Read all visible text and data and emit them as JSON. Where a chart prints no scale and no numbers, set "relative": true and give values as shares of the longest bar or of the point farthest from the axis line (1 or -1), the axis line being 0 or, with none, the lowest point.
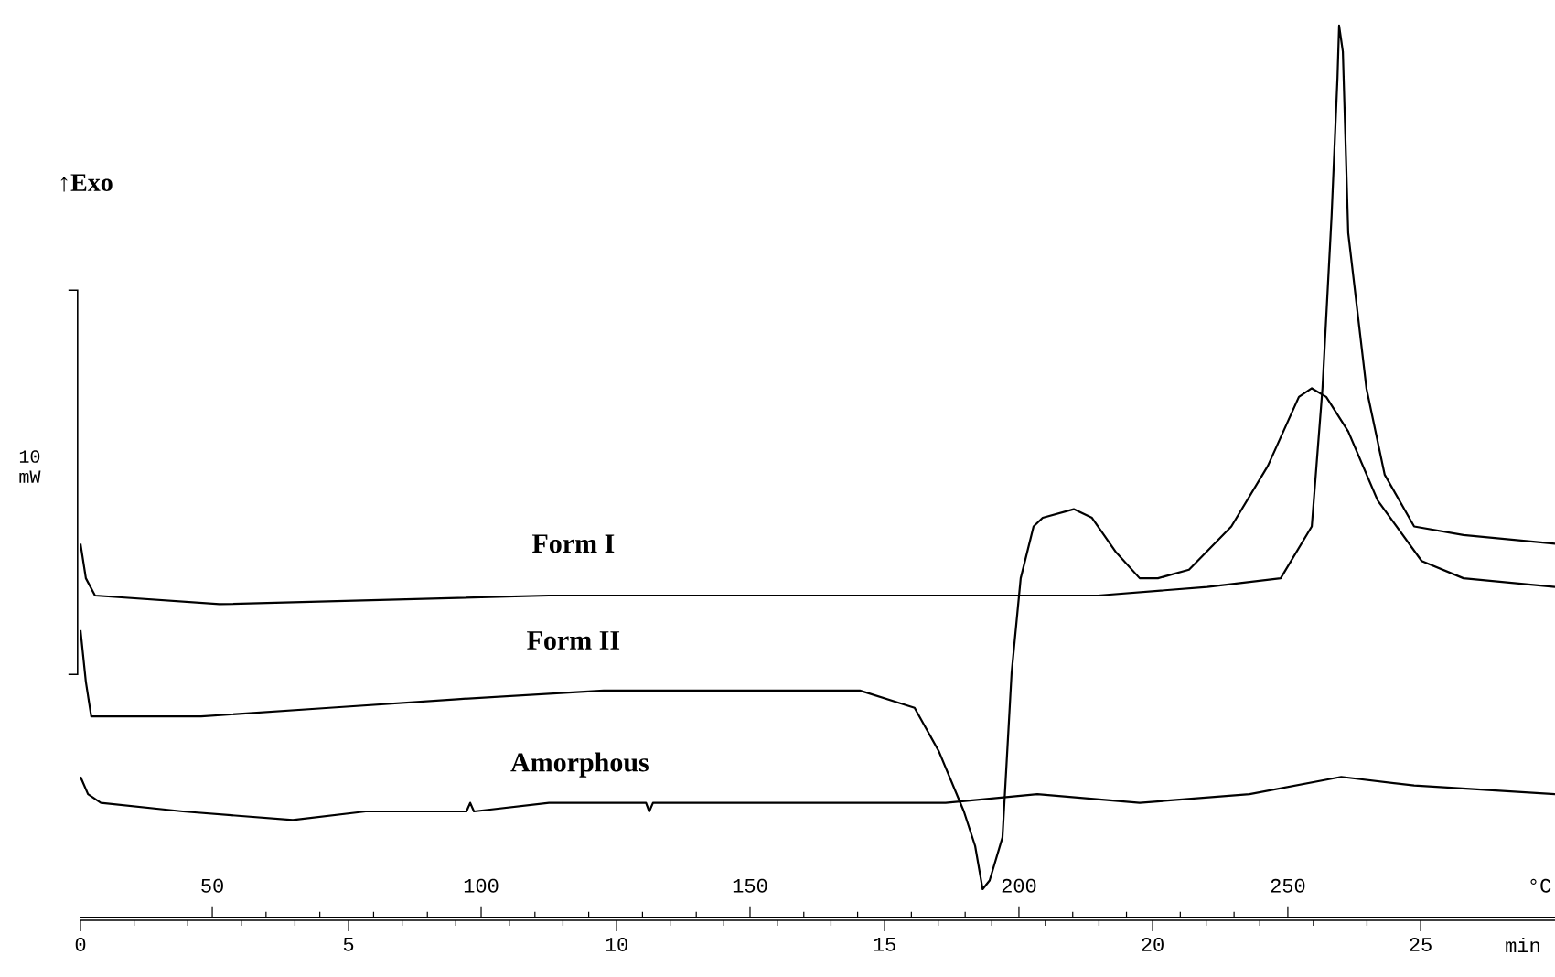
{
  "chart_data": {
    "type": "line",
    "relative": true,
    "xlabel": "min",
    "x2label": "°C",
    "xlim": [
      0,
      27.6
    ],
    "xticks": [
      0,
      5,
      10,
      15,
      20,
      25
    ],
    "x2lim": [
      25.5,
      300.6
    ],
    "x2ticks": [
      50,
      100,
      150,
      200,
      250
    ],
    "annotations": [
      "↑Exo",
      "10 mW"
    ],
    "series": [
      {
        "name": "Form I",
        "color": "#000000",
        "x": [
          0,
          0.1,
          0.27,
          2.59,
          8.74,
          15.56,
          18.98,
          21.02,
          22.39,
          22.97,
          23.17,
          23.34,
          23.45,
          23.48,
          23.55,
          23.65,
          23.99,
          24.33,
          24.88,
          25.8,
          27.51
        ],
        "values": [
          0.4,
          0.36,
          0.34,
          0.33,
          0.34,
          0.34,
          0.34,
          0.35,
          0.36,
          0.42,
          0.58,
          0.78,
          0.94,
          1.0,
          0.97,
          0.76,
          0.58,
          0.48,
          0.42,
          0.41,
          0.4
        ]
      },
      {
        "name": "Form II",
        "color": "#000000",
        "x": [
          0,
          0.1,
          0.2,
          0.55,
          2.25,
          4.64,
          7.03,
          9.76,
          12.15,
          14.54,
          15.56,
          16.01,
          16.48,
          16.69,
          16.83,
          16.96,
          17.2,
          17.37,
          17.54,
          17.78,
          17.95,
          18.53,
          18.87,
          19.32,
          19.76,
          20.1,
          20.68,
          21.47,
          22.15,
          22.73,
          22.97,
          23.24,
          23.65,
          24.2,
          25.02,
          25.8,
          27.51
        ],
        "values": [
          0.3,
          0.24,
          0.2,
          0.2,
          0.2,
          0.21,
          0.22,
          0.23,
          0.23,
          0.23,
          0.21,
          0.16,
          0.09,
          0.05,
          0.0,
          0.01,
          0.06,
          0.25,
          0.36,
          0.42,
          0.43,
          0.44,
          0.43,
          0.39,
          0.36,
          0.36,
          0.37,
          0.42,
          0.49,
          0.57,
          0.58,
          0.57,
          0.53,
          0.45,
          0.38,
          0.36,
          0.35
        ]
      },
      {
        "name": "Amorphous",
        "color": "#000000",
        "x": [
          0,
          0.14,
          0.38,
          1.91,
          3.96,
          5.32,
          7.2,
          7.27,
          7.34,
          8.74,
          10.55,
          10.61,
          10.68,
          14.88,
          16.14,
          17.85,
          19.76,
          21.81,
          23.52,
          24.88,
          27.51
        ],
        "values": [
          0.13,
          0.11,
          0.1,
          0.09,
          0.08,
          0.09,
          0.09,
          0.1,
          0.09,
          0.1,
          0.1,
          0.09,
          0.1,
          0.1,
          0.1,
          0.11,
          0.1,
          0.11,
          0.13,
          0.12,
          0.11
        ]
      }
    ]
  }
}
